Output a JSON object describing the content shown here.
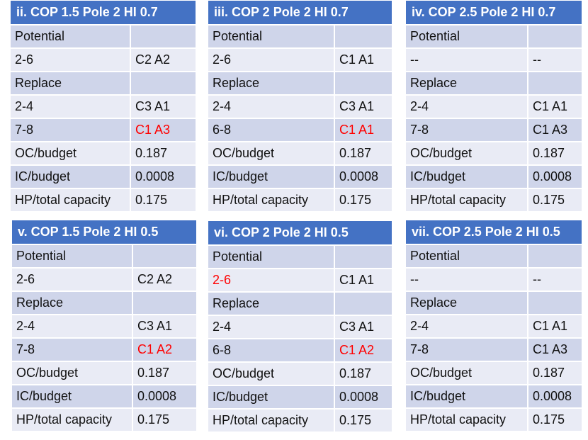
{
  "tables": [
    {
      "title": "ii. COP 1.5 Pole 2 HI 0.7",
      "rows": [
        [
          "Potential",
          ""
        ],
        [
          "2-6",
          "C2 A2"
        ],
        [
          "Replace",
          ""
        ],
        [
          "2-4",
          "C3 A1"
        ],
        [
          "7-8",
          "C1 A3"
        ],
        [
          "OC/budget",
          "0.187"
        ],
        [
          "IC/budget",
          "0.0008"
        ],
        [
          "HP/total capacity",
          "0.175"
        ]
      ],
      "highlight_color": "#ff0000"
    },
    {
      "title": "iii. COP 2 Pole 2 HI 0.7",
      "rows": [
        [
          "Potential",
          ""
        ],
        [
          "2-6",
          "C1 A1"
        ],
        [
          "Replace",
          ""
        ],
        [
          "2-4",
          "C3 A1"
        ],
        [
          "6-8",
          "C1 A1"
        ],
        [
          "OC/budget",
          "0.187"
        ],
        [
          "IC/budget",
          "0.0008"
        ],
        [
          "HP/total capacity",
          "0.175"
        ]
      ]
    },
    {
      "title": "iv. COP 2.5 Pole 2 HI 0.7",
      "rows": [
        [
          "Potential",
          ""
        ],
        [
          "--",
          "--"
        ],
        [
          "Replace",
          ""
        ],
        [
          "2-4",
          "C1 A1"
        ],
        [
          "7-8",
          "C1 A3"
        ],
        [
          "OC/budget",
          "0.187"
        ],
        [
          "IC/budget",
          "0.0008"
        ],
        [
          "HP/total capacity",
          "0.175"
        ]
      ]
    },
    {
      "title": "v. COP 1.5 Pole 2 HI 0.5",
      "rows": [
        [
          "Potential",
          ""
        ],
        [
          "2-6",
          "C2 A2"
        ],
        [
          "Replace",
          ""
        ],
        [
          "2-4",
          "C3 A1"
        ],
        [
          "7-8",
          "C1 A2"
        ],
        [
          "OC/budget",
          "0.187"
        ],
        [
          "IC/budget",
          "0.0008"
        ],
        [
          "HP/total capacity",
          "0.175"
        ]
      ]
    },
    {
      "title": "vi. COP 2 Pole 2 HI 0.5",
      "rows": [
        [
          "Potential",
          ""
        ],
        [
          "2-6",
          "C1 A1"
        ],
        [
          "Replace",
          ""
        ],
        [
          "2-4",
          "C3 A1"
        ],
        [
          "6-8",
          "C1 A2"
        ],
        [
          "OC/budget",
          "0.187"
        ],
        [
          "IC/budget",
          "0.0008"
        ],
        [
          "HP/total capacity",
          "0.175"
        ]
      ]
    },
    {
      "title": "vii. COP 2.5 Pole 2 HI 0.5",
      "rows": [
        [
          "Potential",
          ""
        ],
        [
          "--",
          "--"
        ],
        [
          "Replace",
          ""
        ],
        [
          "2-4",
          "C1 A1"
        ],
        [
          "7-8",
          "C1 A3"
        ],
        [
          "OC/budget",
          "0.187"
        ],
        [
          "IC/budget",
          "0.0008"
        ],
        [
          "HP/total capacity",
          "0.175"
        ]
      ]
    }
  ]
}
